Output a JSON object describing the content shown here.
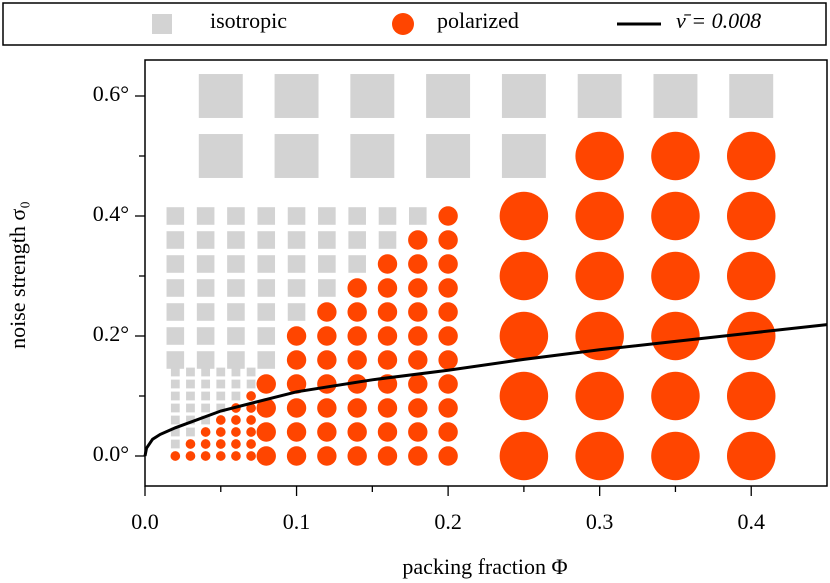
{
  "chart_data": {
    "type": "scatter",
    "xlabel": "packing fraction Φ",
    "ylabel": "noise strength σ₀",
    "xlim": [
      0,
      0.45
    ],
    "ylim": [
      -0.05,
      0.66
    ],
    "xticks": [
      {
        "value": 0,
        "label": "0.0"
      },
      0.1,
      0.2,
      0.3,
      0.4
    ],
    "xticks_minor": [
      0.05,
      0.15,
      0.25,
      0.35
    ],
    "yticks": [
      {
        "value": 0,
        "label": "0.0°"
      },
      {
        "value": 0.2,
        "label": "0.2°"
      },
      {
        "value": 0.4,
        "label": "0.4°"
      },
      {
        "value": 0.6,
        "label": "0.6°"
      }
    ],
    "yticks_minor": [
      0.1,
      0.3,
      0.5
    ],
    "legend": "top",
    "series": [
      {
        "name": "isotropic",
        "color": "#d3d3d3",
        "marker": "square",
        "groups": [
          {
            "x": [
              0.05,
              0.1,
              0.15,
              0.2,
              0.25,
              0.3,
              0.35,
              0.4,
              0.05,
              0.1,
              0.15,
              0.2,
              0.25
            ],
            "y": [
              0.6,
              0.6,
              0.6,
              0.6,
              0.6,
              0.6,
              0.6,
              0.6,
              0.5,
              0.5,
              0.5,
              0.5,
              0.5
            ]
          },
          {
            "x": [
              0.02,
              0.02,
              0.02,
              0.02,
              0.02,
              0.02,
              0.02,
              0.04,
              0.04,
              0.04,
              0.04,
              0.04,
              0.04,
              0.04,
              0.06,
              0.06,
              0.06,
              0.06,
              0.06,
              0.06,
              0.06,
              0.08,
              0.08,
              0.08,
              0.08,
              0.08,
              0.08,
              0.08,
              0.1,
              0.1,
              0.1,
              0.1,
              0.1,
              0.12,
              0.12,
              0.12,
              0.12,
              0.14,
              0.14,
              0.14,
              0.16,
              0.16,
              0.18
            ],
            "y": [
              0.4,
              0.36,
              0.32,
              0.28,
              0.24,
              0.2,
              0.16,
              0.4,
              0.36,
              0.32,
              0.28,
              0.24,
              0.2,
              0.16,
              0.4,
              0.36,
              0.32,
              0.28,
              0.24,
              0.2,
              0.16,
              0.4,
              0.36,
              0.32,
              0.28,
              0.24,
              0.2,
              0.16,
              0.4,
              0.36,
              0.32,
              0.28,
              0.24,
              0.4,
              0.36,
              0.32,
              0.28,
              0.4,
              0.36,
              0.32,
              0.4,
              0.36,
              0.4
            ]
          },
          {
            "x": [
              0.02,
              0.02,
              0.02,
              0.02,
              0.02,
              0.02,
              0.02,
              0.03,
              0.03,
              0.03,
              0.03,
              0.03,
              0.03,
              0.04,
              0.04,
              0.04,
              0.04,
              0.04,
              0.05,
              0.05,
              0.05,
              0.05,
              0.06,
              0.06,
              0.06,
              0.07,
              0.07
            ],
            "y": [
              0.14,
              0.12,
              0.1,
              0.08,
              0.06,
              0.04,
              0.02,
              0.14,
              0.12,
              0.1,
              0.08,
              0.06,
              0.04,
              0.14,
              0.12,
              0.1,
              0.08,
              0.06,
              0.14,
              0.12,
              0.1,
              0.08,
              0.14,
              0.12,
              0.1,
              0.14,
              0.12
            ]
          }
        ]
      },
      {
        "name": "polarized",
        "color": "#ff4500",
        "marker": "circle",
        "groups": [
          {
            "x": [
              0.3,
              0.35,
              0.4,
              0.25,
              0.3,
              0.35,
              0.4,
              0.25,
              0.3,
              0.35,
              0.4,
              0.25,
              0.3,
              0.35,
              0.4,
              0.25,
              0.3,
              0.35,
              0.4,
              0.25,
              0.3,
              0.35,
              0.4
            ],
            "y": [
              0.5,
              0.5,
              0.5,
              0.4,
              0.4,
              0.4,
              0.4,
              0.3,
              0.3,
              0.3,
              0.3,
              0.2,
              0.2,
              0.2,
              0.2,
              0.1,
              0.1,
              0.1,
              0.1,
              0,
              0,
              0,
              0
            ]
          },
          {
            "x": [
              0.08,
              0.08,
              0.08,
              0.08,
              0.1,
              0.1,
              0.1,
              0.1,
              0.1,
              0.1,
              0.12,
              0.12,
              0.12,
              0.12,
              0.12,
              0.12,
              0.12,
              0.14,
              0.14,
              0.14,
              0.14,
              0.14,
              0.14,
              0.14,
              0.14,
              0.16,
              0.16,
              0.16,
              0.16,
              0.16,
              0.16,
              0.16,
              0.16,
              0.16,
              0.18,
              0.18,
              0.18,
              0.18,
              0.18,
              0.18,
              0.18,
              0.18,
              0.18,
              0.18,
              0.2,
              0.2,
              0.2,
              0.2,
              0.2,
              0.2,
              0.2,
              0.2,
              0.2,
              0.2,
              0.2
            ],
            "y": [
              0.12,
              0.08,
              0.04,
              0,
              0.2,
              0.16,
              0.12,
              0.08,
              0.04,
              0,
              0.24,
              0.2,
              0.16,
              0.12,
              0.08,
              0.04,
              0,
              0.28,
              0.24,
              0.2,
              0.16,
              0.12,
              0.08,
              0.04,
              0,
              0.32,
              0.28,
              0.24,
              0.2,
              0.16,
              0.12,
              0.08,
              0.04,
              0,
              0.36,
              0.32,
              0.28,
              0.24,
              0.2,
              0.16,
              0.12,
              0.08,
              0.04,
              0,
              0.4,
              0.36,
              0.32,
              0.28,
              0.24,
              0.2,
              0.16,
              0.12,
              0.08,
              0.04,
              0
            ]
          },
          {
            "x": [
              0.02,
              0.03,
              0.03,
              0.04,
              0.04,
              0.04,
              0.05,
              0.05,
              0.05,
              0.05,
              0.06,
              0.06,
              0.06,
              0.06,
              0.06,
              0.07,
              0.07,
              0.07,
              0.07,
              0.07,
              0.07
            ],
            "y": [
              0,
              0.02,
              0,
              0.04,
              0.02,
              0,
              0.06,
              0.04,
              0.02,
              0,
              0.08,
              0.06,
              0.04,
              0.02,
              0,
              0.1,
              0.08,
              0.06,
              0.04,
              0.02,
              0
            ]
          }
        ]
      },
      {
        "name": "ν̄ = 0.008",
        "color": "#000000",
        "marker": "line",
        "x": [
          0,
          0.001,
          0.005,
          0.01,
          0.02,
          0.05,
          0.1,
          0.15,
          0.2,
          0.25,
          0.3,
          0.35,
          0.4,
          0.45
        ],
        "y": [
          0,
          0.013,
          0.028,
          0.036,
          0.047,
          0.075,
          0.107,
          0.127,
          0.143,
          0.161,
          0.177,
          0.191,
          0.205,
          0.219
        ]
      }
    ]
  }
}
